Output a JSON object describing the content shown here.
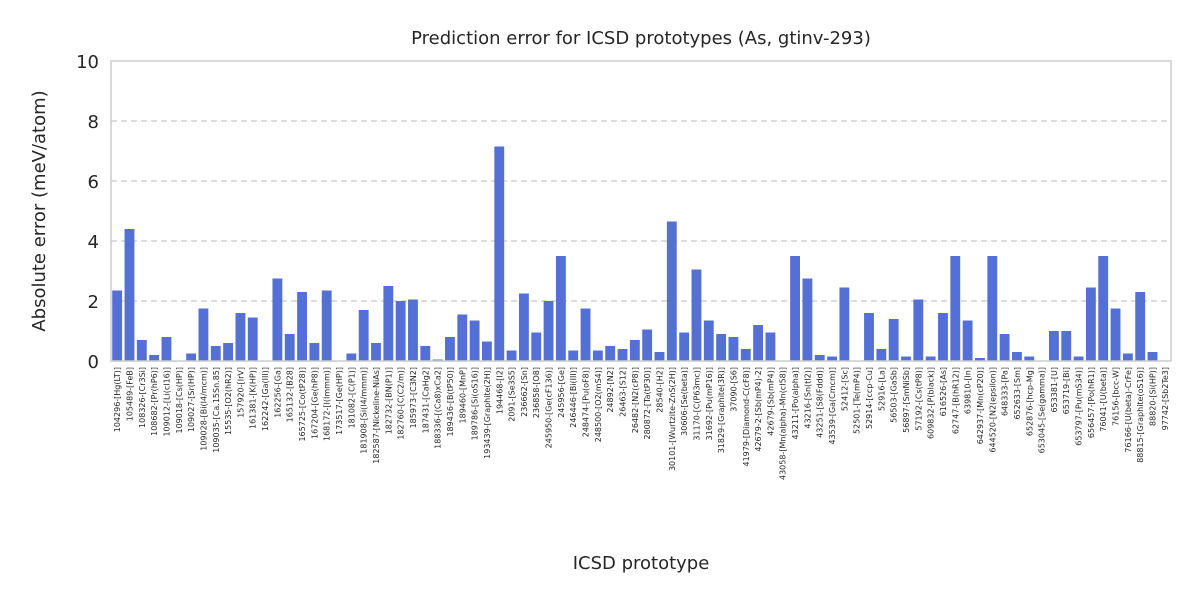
{
  "chart_data": {
    "type": "bar",
    "title": "Prediction error for ICSD prototypes (As, gtinv-293)",
    "xlabel": "ICSD prototype",
    "ylabel": "Absolute error (meV/atom)",
    "ylim": [
      0,
      10
    ],
    "yticks": [
      0,
      2,
      4,
      6,
      8,
      10
    ],
    "grid": "y",
    "color": "#5470d4",
    "categories": [
      "104296-[Hg(LT)]",
      "105489-[FeB]",
      "108326-[Cr3Si]",
      "108682-[Pr(hP6)]",
      "109012-[Li(cI16)]",
      "109018-[Cs(HP)]",
      "109027-[Sr(HP)]",
      "109028-[Bi(I4/mcm)]",
      "109035-[Ca.15Sn.85]",
      "15535-[O2(hR2)]",
      "157920-[IrV]",
      "161381-[K(HP)]",
      "162242-[Ga(III)]",
      "162256-[Ga]",
      "165132-[B28]",
      "165725-[Co(tP28)]",
      "167204-[Ge(hP8)]",
      "168172-[I(Immm)]",
      "173517-[Ge(HP)]",
      "181082-[C(P1)]",
      "181908-[Si(I4/mmm)]",
      "182587-[Nickeline-NiAs]",
      "182732-[BN(P1)]",
      "182760-[C(C2/m)]",
      "185973-[C3N2]",
      "187431-[CaHg2]",
      "188336-[(Ca8)xCa2]",
      "189436-[B(tP50)]",
      "189460-[MnP]",
      "189786-[Si(oS16)]",
      "193439-[Graphite(2H)]",
      "194468-[I2]",
      "2091-[Se3S5]",
      "236662-[Sn]",
      "236858-[O8]",
      "245950-[Ge(cF136)]",
      "245956-[Ge]",
      "246446-[Bi(III)]",
      "248474-[Pu(oF8)]",
      "248500-[O2(mS4)]",
      "24892-[N2]",
      "26463-[S12]",
      "26482-[N2(cP8)]",
      "280872-[Ta(tP30)]",
      "28540-[H2]",
      "30101-[Wurtzite-ZnS(2H)]",
      "30606-[Se(beta)]",
      "31170-[C(P63mc)]",
      "31692-[Pu(mP16)]",
      "31829-[Graphite(3R)]",
      "37090-[S6]",
      "41979-[Diamond-C(cF8)]",
      "42679-2-[Sb(mP4)-2]",
      "42679-[Sb(mP4)]",
      "43058-[Mn(alpha)-Mn(cI58)]",
      "43211-[Po(alpha)]",
      "43216-[Sn(tI2)]",
      "43251-[S8(Fddd)]",
      "43539-[Ga(Cmcm)]",
      "52412-[Sc]",
      "52501-[Te(mP4)]",
      "52914-[ccp-Cu]",
      "52916-[La]",
      "56503-[GaSb]",
      "56897-[SmNiSb]",
      "57192-[Cs(tP8)]",
      "609832-[P(black)]",
      "616526-[As]",
      "62747-[B(hR12)]",
      "639810-[In]",
      "642937-[Mn(cP20)]",
      "644520-[N2(epsilon)]",
      "648333-[Pa]",
      "652633-[Sm]",
      "652876-[hcp-Mg]",
      "653045-[Se(gamma)]",
      "653381-[U]",
      "653719-[Bi]",
      "653797-[Pu(mS34)]",
      "656457-[Po(hR1)]",
      "76041-[U(beta)]",
      "76156-[bcc-W]",
      "76166-[U(beta)-CrFe]",
      "88815-[Graphite(oS16)]",
      "88820-[Si(HP)]",
      "97742-[Sb2Te3]"
    ],
    "values": [
      2.35,
      4.4,
      0.7,
      0.2,
      0.8,
      0.0,
      0.25,
      1.75,
      0.5,
      0.6,
      1.6,
      1.45,
      0.0,
      2.75,
      0.9,
      2.3,
      0.6,
      2.35,
      0.0,
      0.25,
      1.7,
      0.6,
      2.5,
      2.0,
      2.05,
      0.5,
      0.05,
      0.8,
      1.55,
      1.35,
      0.65,
      7.15,
      0.35,
      2.25,
      0.95,
      2.0,
      3.5,
      0.35,
      1.75,
      0.35,
      0.5,
      0.4,
      0.7,
      1.05,
      0.3,
      4.65,
      0.95,
      3.05,
      1.35,
      0.9,
      0.8,
      0.4,
      1.2,
      0.95,
      0.0,
      3.5,
      2.75,
      0.2,
      0.15,
      2.45,
      0.0,
      1.6,
      0.4,
      1.4,
      0.15,
      2.05,
      0.15,
      1.6,
      3.5,
      1.35,
      0.1,
      3.5,
      0.9,
      0.3,
      0.15,
      0.0,
      1.0,
      1.0,
      0.15,
      2.45,
      3.5,
      1.75,
      0.25,
      2.3,
      0.3,
      0.0
    ]
  }
}
